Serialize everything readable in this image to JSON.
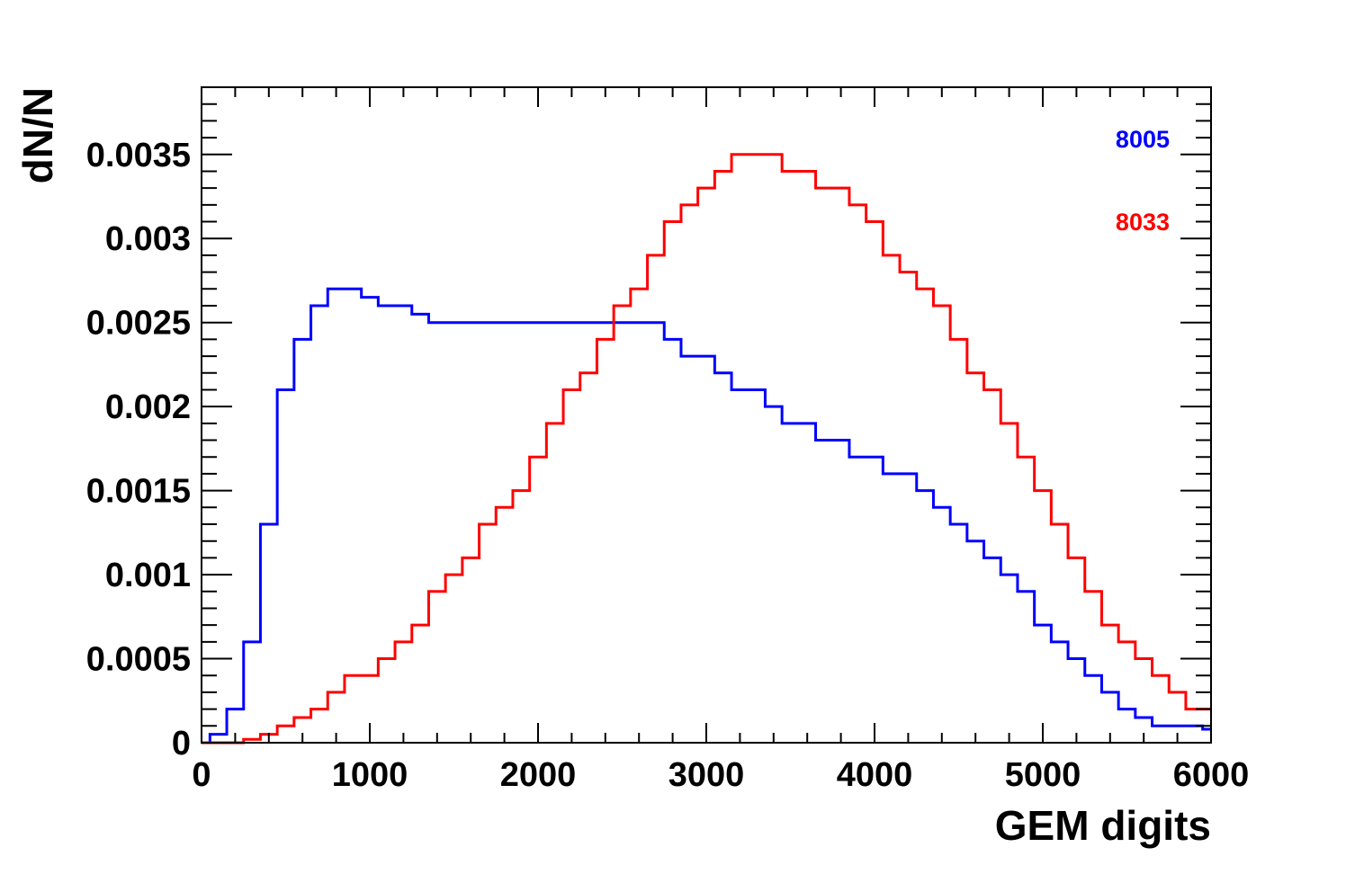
{
  "chart_data": {
    "type": "line",
    "title": "",
    "xlabel": "GEM digits",
    "ylabel": "dN/N",
    "xlim": [
      0,
      6000
    ],
    "ylim": [
      0,
      0.0039
    ],
    "x_ticks": [
      0,
      1000,
      2000,
      3000,
      4000,
      5000,
      6000
    ],
    "x_tick_labels": [
      "0",
      "1000",
      "2000",
      "3000",
      "4000",
      "5000",
      "6000"
    ],
    "y_ticks": [
      0,
      0.0005,
      0.001,
      0.0015,
      0.002,
      0.0025,
      0.003,
      0.0035
    ],
    "y_tick_labels": [
      "0",
      "0.0005",
      "0.001",
      "0.0015",
      "0.002",
      "0.0025",
      "0.003",
      "0.0035"
    ],
    "grid": false,
    "legend_position": "top-right",
    "series": [
      {
        "name": "8005",
        "color": "#0000ff",
        "x": [
          0,
          100,
          200,
          300,
          400,
          500,
          600,
          700,
          800,
          900,
          1000,
          1100,
          1200,
          1300,
          1400,
          1500,
          1600,
          1700,
          1800,
          1900,
          2000,
          2100,
          2200,
          2300,
          2400,
          2500,
          2600,
          2700,
          2800,
          2900,
          3000,
          3100,
          3200,
          3300,
          3400,
          3500,
          3600,
          3700,
          3800,
          3900,
          4000,
          4100,
          4200,
          4300,
          4400,
          4500,
          4600,
          4700,
          4800,
          4900,
          5000,
          5100,
          5200,
          5300,
          5400,
          5500,
          5600,
          5700,
          5800,
          5900,
          6000
        ],
        "values": [
          0.0,
          5e-05,
          0.0002,
          0.0006,
          0.0013,
          0.0021,
          0.0024,
          0.0026,
          0.0027,
          0.0027,
          0.00265,
          0.0026,
          0.0026,
          0.00255,
          0.0025,
          0.0025,
          0.0025,
          0.0025,
          0.0025,
          0.0025,
          0.0025,
          0.0025,
          0.0025,
          0.0025,
          0.0025,
          0.0025,
          0.0025,
          0.0025,
          0.0024,
          0.0023,
          0.0023,
          0.0022,
          0.0021,
          0.0021,
          0.002,
          0.0019,
          0.0019,
          0.0018,
          0.0018,
          0.0017,
          0.0017,
          0.0016,
          0.0016,
          0.0015,
          0.0014,
          0.0013,
          0.0012,
          0.0011,
          0.001,
          0.0009,
          0.0007,
          0.0006,
          0.0005,
          0.0004,
          0.0003,
          0.0002,
          0.00015,
          0.0001,
          0.0001,
          0.0001,
          8e-05
        ]
      },
      {
        "name": "8033",
        "color": "#ff0000",
        "x": [
          0,
          100,
          200,
          300,
          400,
          500,
          600,
          700,
          800,
          900,
          1000,
          1100,
          1200,
          1300,
          1400,
          1500,
          1600,
          1700,
          1800,
          1900,
          2000,
          2100,
          2200,
          2300,
          2400,
          2500,
          2600,
          2700,
          2800,
          2900,
          3000,
          3100,
          3200,
          3300,
          3400,
          3500,
          3600,
          3700,
          3800,
          3900,
          4000,
          4100,
          4200,
          4300,
          4400,
          4500,
          4600,
          4700,
          4800,
          4900,
          5000,
          5100,
          5200,
          5300,
          5400,
          5500,
          5600,
          5700,
          5800,
          5900,
          6000
        ],
        "values": [
          0.0,
          0.0,
          0.0,
          2e-05,
          5e-05,
          0.0001,
          0.00015,
          0.0002,
          0.0003,
          0.0004,
          0.0004,
          0.0005,
          0.0006,
          0.0007,
          0.0009,
          0.001,
          0.0011,
          0.0013,
          0.0014,
          0.0015,
          0.0017,
          0.0019,
          0.0021,
          0.0022,
          0.0024,
          0.0026,
          0.0027,
          0.0029,
          0.0031,
          0.0032,
          0.0033,
          0.0034,
          0.0035,
          0.0035,
          0.0035,
          0.0034,
          0.0034,
          0.0033,
          0.0033,
          0.0032,
          0.0031,
          0.0029,
          0.0028,
          0.0027,
          0.0026,
          0.0024,
          0.0022,
          0.0021,
          0.0019,
          0.0017,
          0.0015,
          0.0013,
          0.0011,
          0.0009,
          0.0007,
          0.0006,
          0.0005,
          0.0004,
          0.0003,
          0.0002,
          0.0002
        ]
      }
    ]
  }
}
